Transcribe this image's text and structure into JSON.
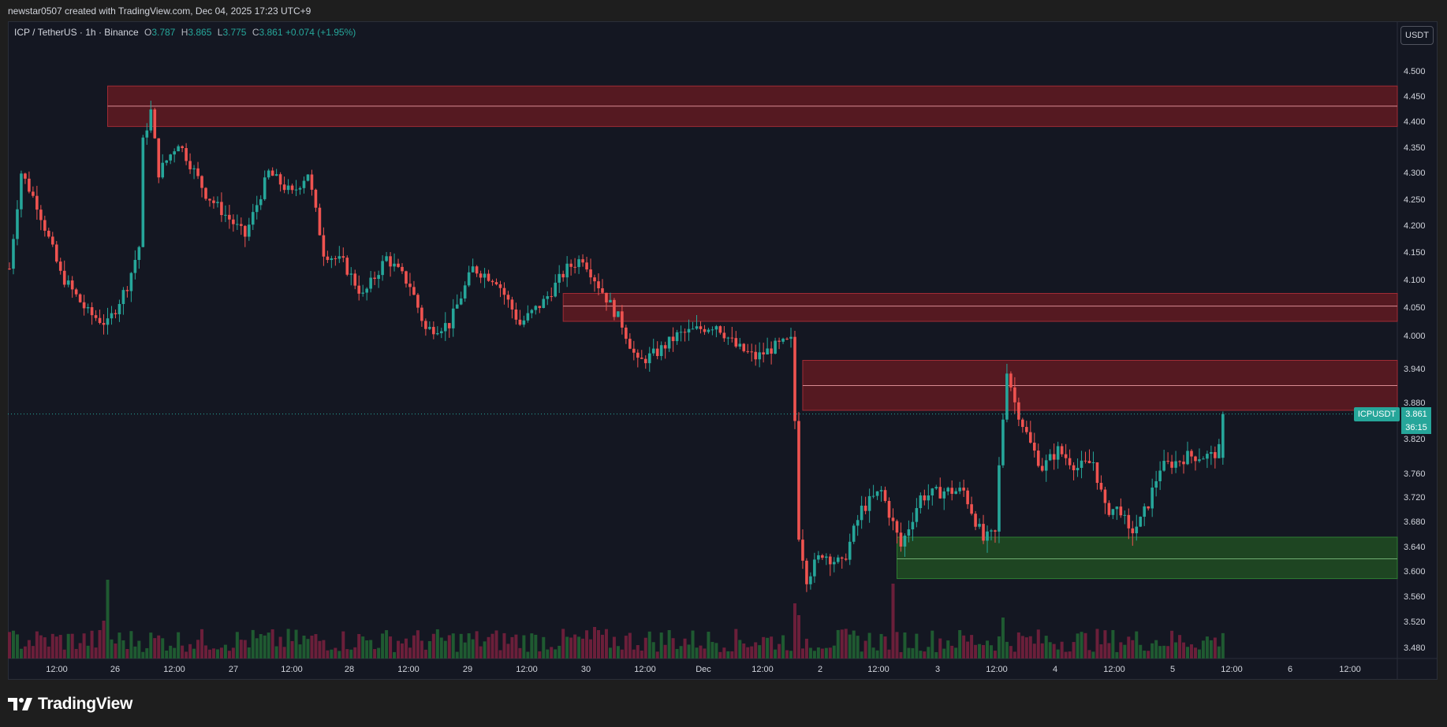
{
  "watermark_text": "newstar0507 created with TradingView.com, Dec 04, 2025 17:23 UTC+9",
  "legend": {
    "symbol": "ICP / TetherUS · 1h · Binance",
    "o_label": "O",
    "o_value": "3.787",
    "h_label": "H",
    "h_value": "3.865",
    "l_label": "L",
    "l_value": "3.775",
    "c_label": "C",
    "c_value": "3.861",
    "change": "+0.074 (+1.95%)"
  },
  "currency_button": "USDT",
  "price_tag": {
    "symbol": "ICPUSDT",
    "price": "3.861",
    "countdown": "36:15"
  },
  "brand": "TradingView",
  "colors": {
    "up": "#26a69a",
    "down": "#ef5350",
    "zone_red": "#5c1a21",
    "zone_green": "#1f4a22",
    "vol_up": "#1f5a31",
    "vol_down": "#6b1f3a"
  },
  "chart_data": {
    "type": "candlestick",
    "series_label": "ICPUSDT",
    "interval": "1h",
    "yaxis_labels": [
      "4.500",
      "4.450",
      "4.400",
      "4.350",
      "4.300",
      "4.250",
      "4.200",
      "4.150",
      "4.100",
      "4.050",
      "4.000",
      "3.940",
      "3.880",
      "3.820",
      "3.760",
      "3.720",
      "3.680",
      "3.640",
      "3.600",
      "3.560",
      "3.520",
      "3.480"
    ],
    "xaxis_labels": [
      "12:00",
      "26",
      "12:00",
      "27",
      "12:00",
      "28",
      "12:00",
      "29",
      "12:00",
      "30",
      "12:00",
      "Dec",
      "12:00",
      "2",
      "12:00",
      "3",
      "12:00",
      "4",
      "12:00",
      "5",
      "12:00",
      "6",
      "12:00"
    ],
    "last_price": 3.861,
    "zones": [
      {
        "kind": "supply",
        "top": 4.47,
        "bottom": 4.39,
        "mid": 4.43
      },
      {
        "kind": "supply",
        "top": 4.075,
        "bottom": 4.025,
        "mid": 4.052
      },
      {
        "kind": "supply",
        "top": 3.955,
        "bottom": 3.867,
        "mid": 3.91
      },
      {
        "kind": "demand",
        "top": 3.655,
        "bottom": 3.588,
        "mid": 3.62
      }
    ],
    "anchors": [
      [
        0,
        4.12
      ],
      [
        3,
        4.3
      ],
      [
        7,
        4.24
      ],
      [
        13,
        4.11
      ],
      [
        20,
        4.04
      ],
      [
        25,
        4.02
      ],
      [
        30,
        4.09
      ],
      [
        33,
        4.16
      ],
      [
        34,
        4.36
      ],
      [
        36,
        4.42
      ],
      [
        38,
        4.3
      ],
      [
        43,
        4.36
      ],
      [
        50,
        4.26
      ],
      [
        60,
        4.18
      ],
      [
        66,
        4.3
      ],
      [
        72,
        4.26
      ],
      [
        76,
        4.3
      ],
      [
        80,
        4.15
      ],
      [
        85,
        4.13
      ],
      [
        90,
        4.07
      ],
      [
        96,
        4.14
      ],
      [
        102,
        4.09
      ],
      [
        106,
        4.01
      ],
      [
        112,
        4.02
      ],
      [
        118,
        4.12
      ],
      [
        124,
        4.1
      ],
      [
        130,
        4.02
      ],
      [
        136,
        4.06
      ],
      [
        142,
        4.12
      ],
      [
        146,
        4.14
      ],
      [
        150,
        4.09
      ],
      [
        156,
        4.02
      ],
      [
        160,
        3.95
      ],
      [
        165,
        3.97
      ],
      [
        170,
        4.0
      ],
      [
        180,
        4.02
      ],
      [
        185,
        3.98
      ],
      [
        190,
        3.96
      ],
      [
        195,
        3.98
      ],
      [
        199,
        3.99
      ],
      [
        200,
        3.85
      ],
      [
        201,
        3.66
      ],
      [
        203,
        3.59
      ],
      [
        207,
        3.63
      ],
      [
        212,
        3.61
      ],
      [
        217,
        3.7
      ],
      [
        222,
        3.73
      ],
      [
        227,
        3.64
      ],
      [
        232,
        3.72
      ],
      [
        238,
        3.73
      ],
      [
        243,
        3.73
      ],
      [
        248,
        3.65
      ],
      [
        251,
        3.66
      ],
      [
        252,
        3.77
      ],
      [
        254,
        3.94
      ],
      [
        256,
        3.88
      ],
      [
        260,
        3.81
      ],
      [
        263,
        3.77
      ],
      [
        267,
        3.8
      ],
      [
        272,
        3.77
      ],
      [
        276,
        3.78
      ],
      [
        279,
        3.7
      ],
      [
        283,
        3.7
      ],
      [
        285,
        3.66
      ],
      [
        288,
        3.68
      ],
      [
        290,
        3.71
      ],
      [
        293,
        3.77
      ],
      [
        297,
        3.78
      ],
      [
        300,
        3.79
      ],
      [
        306,
        3.79
      ],
      [
        308,
        3.8
      ],
      [
        309,
        3.861
      ]
    ]
  }
}
